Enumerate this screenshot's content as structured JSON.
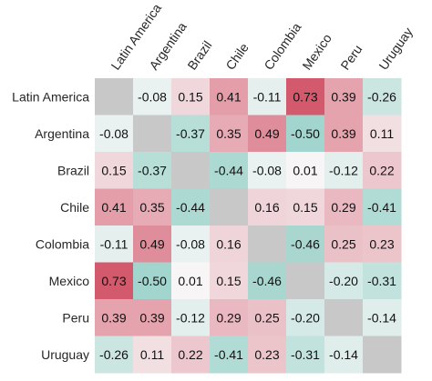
{
  "chart_data": {
    "type": "heatmap",
    "title": "",
    "xlabel": "",
    "ylabel": "",
    "row_labels": [
      "Latin America",
      "Argentina",
      "Brazil",
      "Chile",
      "Colombia",
      "Mexico",
      "Peru",
      "Uruguay"
    ],
    "col_labels": [
      "Latin America",
      "Argentina",
      "Brazil",
      "Chile",
      "Colombia",
      "Mexico",
      "Peru",
      "Uruguay"
    ],
    "values": [
      [
        null,
        -0.08,
        0.15,
        0.41,
        -0.11,
        0.73,
        0.39,
        -0.26
      ],
      [
        -0.08,
        null,
        -0.37,
        0.35,
        0.49,
        -0.5,
        0.39,
        0.11
      ],
      [
        0.15,
        -0.37,
        null,
        -0.44,
        -0.08,
        0.01,
        -0.12,
        0.22
      ],
      [
        0.41,
        0.35,
        -0.44,
        null,
        0.16,
        0.15,
        0.29,
        -0.41
      ],
      [
        -0.11,
        0.49,
        -0.08,
        0.16,
        null,
        -0.46,
        0.25,
        0.23
      ],
      [
        0.73,
        -0.5,
        0.01,
        0.15,
        -0.46,
        null,
        -0.2,
        -0.31
      ],
      [
        0.39,
        0.39,
        -0.12,
        0.29,
        0.25,
        -0.2,
        null,
        -0.14
      ],
      [
        -0.26,
        0.11,
        0.22,
        -0.41,
        0.23,
        -0.31,
        -0.14,
        null
      ]
    ],
    "color_scale": {
      "negative": "#6fc0b4",
      "neutral": "#f7f7f7",
      "positive": "#cf4a5f",
      "vmax": 0.8,
      "missing": "#c8c8c8"
    },
    "x_tick_rotation_deg": -55
  }
}
